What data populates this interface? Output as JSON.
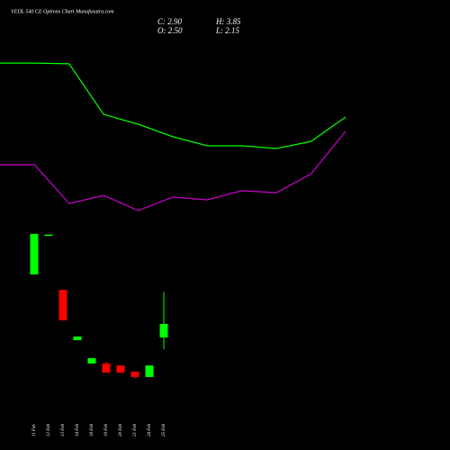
{
  "header": {
    "title": "VEDL 540 CE Options Chart Munafasutra.com",
    "close": "C: 2.90",
    "high": "H: 3.85",
    "open": "O: 2.50",
    "low": "L: 2.15"
  },
  "chart_data": [
    {
      "type": "candlestick",
      "categories": [
        "11 Feb",
        "12 Feb",
        "13 Feb",
        "14 Feb",
        "18 Feb",
        "19 Feb",
        "20 Feb",
        "21 Feb",
        "24 Feb",
        "25 Feb"
      ],
      "open": [
        4.37,
        5.52,
        3.91,
        2.42,
        1.73,
        1.73,
        1.67,
        1.49,
        1.33,
        2.5
      ],
      "high": [
        5.57,
        5.55,
        3.91,
        2.53,
        1.89,
        1.78,
        1.67,
        1.49,
        1.67,
        3.85
      ],
      "low": [
        4.37,
        5.52,
        3.01,
        2.42,
        1.73,
        1.46,
        1.46,
        1.27,
        1.33,
        2.15
      ],
      "close": [
        5.57,
        5.55,
        3.01,
        2.53,
        1.89,
        1.46,
        1.46,
        1.33,
        1.67,
        2.9
      ],
      "up_color": "#00ff00",
      "down_color": "#ff0000",
      "ylim": [
        1,
        6
      ]
    },
    {
      "type": "line",
      "x": [
        0,
        1,
        2,
        3,
        4,
        5,
        6,
        7,
        8,
        9,
        10
      ],
      "xlim": [
        0,
        10
      ],
      "ylim": [
        6,
        11
      ],
      "series": [
        {
          "color": "#00ff00",
          "values": [
            10.63,
            10.63,
            10.61,
            9.11,
            8.82,
            8.45,
            8.18,
            8.18,
            8.1,
            8.31,
            9.03
          ]
        },
        {
          "color": "#cc00cc",
          "values": [
            7.62,
            7.62,
            6.47,
            6.71,
            6.26,
            6.66,
            6.58,
            6.85,
            6.79,
            7.35,
            8.61
          ]
        }
      ]
    }
  ]
}
